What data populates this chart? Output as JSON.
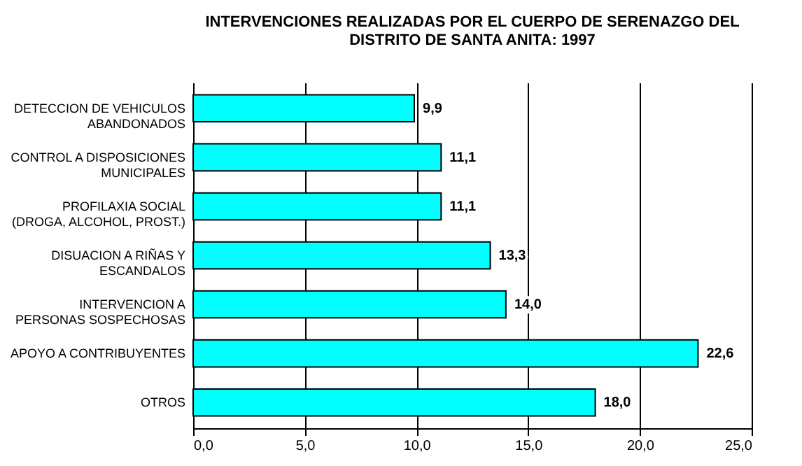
{
  "chart_data": {
    "type": "bar",
    "orientation": "horizontal",
    "title": "INTERVENCIONES REALIZADAS POR EL CUERPO DE SERENAZGO DEL\nDISTRITO DE SANTA ANITA: 1997",
    "categories": [
      "DETECCION DE VEHICULOS\nABANDONADOS",
      "CONTROL A DISPOSICIONES\nMUNICIPALES",
      "PROFILAXIA SOCIAL\n(DROGA, ALCOHOL, PROST.)",
      "DISUACION A RIÑAS Y\nESCANDALOS",
      "INTERVENCION A\nPERSONAS SOSPECHOSAS",
      "APOYO A CONTRIBUYENTES",
      "OTROS"
    ],
    "values": [
      9.9,
      11.1,
      11.1,
      13.3,
      14.0,
      22.6,
      18.0
    ],
    "value_labels": [
      "9,9",
      "11,1",
      "11,1",
      "13,3",
      "14,0",
      "22,6",
      "18,0"
    ],
    "color": "#00ffff",
    "xlim": [
      0,
      25
    ],
    "xticks": [
      {
        "value": 0,
        "label": "0,0"
      },
      {
        "value": 5,
        "label": "5,0"
      },
      {
        "value": 10,
        "label": "10,0"
      },
      {
        "value": 15,
        "label": "15,0"
      },
      {
        "value": 20,
        "label": "20,0"
      },
      {
        "value": 25,
        "label": "25,0"
      }
    ],
    "grid": "x"
  }
}
